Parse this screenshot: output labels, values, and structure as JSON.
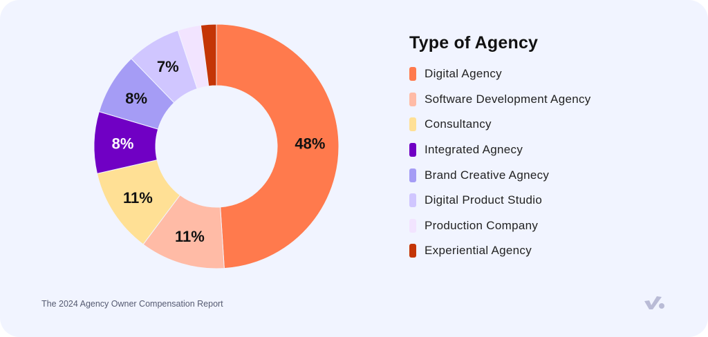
{
  "chart_data": {
    "type": "pie",
    "variant": "donut",
    "title": "Type of Agency",
    "categories": [
      "Digital Agency",
      "Software Development Agency",
      "Consultancy",
      "Integrated Agnecy",
      "Brand Creative Agnecy",
      "Digital Product Studio",
      "Production Company",
      "Experiential Agency"
    ],
    "values": [
      48,
      11,
      11,
      8,
      8,
      7,
      3,
      2
    ],
    "labels": [
      "48%",
      "11%",
      "11%",
      "8%",
      "8%",
      "7%",
      "",
      ""
    ],
    "colors": [
      "#FF7A4D",
      "#FFBBA6",
      "#FFE095",
      "#7000C4",
      "#A59CF5",
      "#D0C6FF",
      "#F2E4FF",
      "#C43506"
    ],
    "label_colors": [
      "#111111",
      "#111111",
      "#111111",
      "#FFFFFF",
      "#111111",
      "#111111",
      "#111111",
      "#111111"
    ],
    "legend_placement": "right"
  },
  "footer": "The 2024 Agency Owner Compensation Report",
  "logo_icon": "checkmark-logo-icon"
}
